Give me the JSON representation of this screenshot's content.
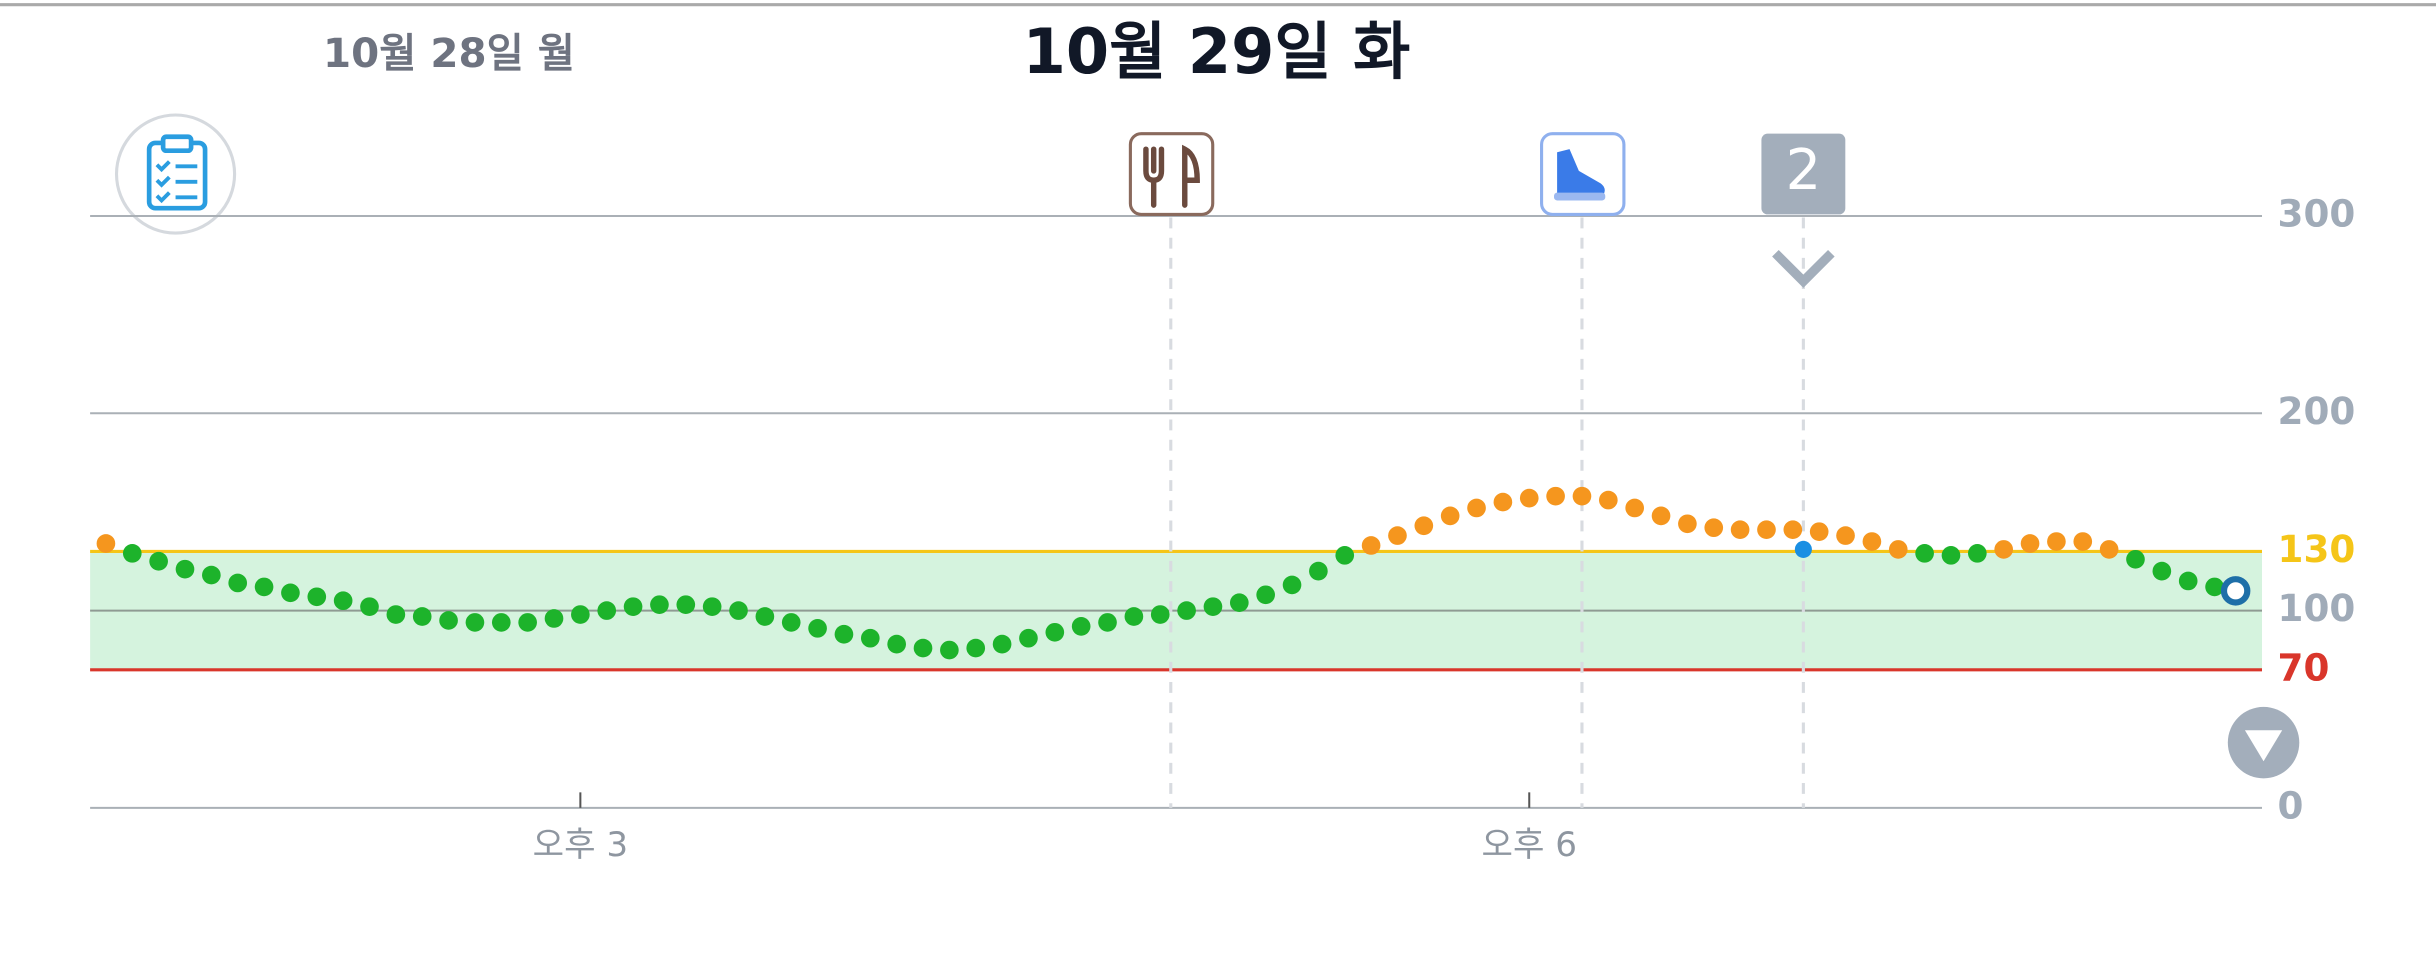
{
  "header": {
    "prev_day": "10월 28일 월",
    "title": "10월 29일 화"
  },
  "chart_data": {
    "type": "scatter",
    "x": [
      810,
      815,
      820,
      825,
      830,
      835,
      840,
      845,
      850,
      855,
      860,
      865,
      870,
      875,
      880,
      885,
      890,
      895,
      900,
      905,
      910,
      915,
      920,
      925,
      930,
      935,
      940,
      945,
      950,
      955,
      960,
      965,
      970,
      975,
      980,
      985,
      990,
      995,
      1000,
      1005,
      1010,
      1015,
      1020,
      1025,
      1030,
      1035,
      1040,
      1045,
      1050,
      1055,
      1060,
      1065,
      1070,
      1075,
      1080,
      1085,
      1090,
      1095,
      1100,
      1105,
      1110,
      1115,
      1120,
      1125,
      1130,
      1135,
      1140,
      1145,
      1150,
      1155,
      1160,
      1165,
      1170,
      1175,
      1180,
      1185,
      1190,
      1195,
      1200,
      1205,
      1210,
      1214
    ],
    "values": [
      134,
      129,
      125,
      121,
      118,
      114,
      112,
      109,
      107,
      105,
      102,
      98,
      97,
      95,
      94,
      94,
      94,
      96,
      98,
      100,
      102,
      103,
      103,
      102,
      100,
      97,
      94,
      91,
      88,
      86,
      83,
      81,
      80,
      81,
      83,
      86,
      89,
      92,
      94,
      97,
      98,
      100,
      102,
      104,
      108,
      113,
      120,
      128,
      133,
      138,
      143,
      148,
      152,
      155,
      157,
      158,
      158,
      156,
      152,
      148,
      144,
      142,
      141,
      141,
      141,
      140,
      138,
      135,
      131,
      129,
      128,
      129,
      131,
      134,
      135,
      135,
      131,
      126,
      120,
      115,
      112,
      110
    ],
    "color": "#1db32b",
    "high_color": "#f5961e",
    "current_color": "#1e6fa8",
    "manual_points": {
      "x": [
        1132
      ],
      "values": [
        131
      ],
      "color": "#1a8fe3"
    },
    "target_low": {
      "value": 70,
      "color": "#d9362b"
    },
    "target_high": {
      "value": 130,
      "color": "#f5c518"
    },
    "range_fill": "#d5f3de",
    "xlim": [
      807,
      1219
    ],
    "xticks": [
      {
        "value": 900,
        "label": "오후 3"
      },
      {
        "value": 1080,
        "label": "오후 6"
      }
    ],
    "ylim": [
      0,
      300
    ],
    "yticks": [
      0,
      100,
      200,
      300
    ],
    "grid": true,
    "events": [
      {
        "x": 1012,
        "kind": "meal"
      },
      {
        "x": 1090,
        "kind": "exercise"
      },
      {
        "x": 1132,
        "label": "2"
      }
    ]
  }
}
